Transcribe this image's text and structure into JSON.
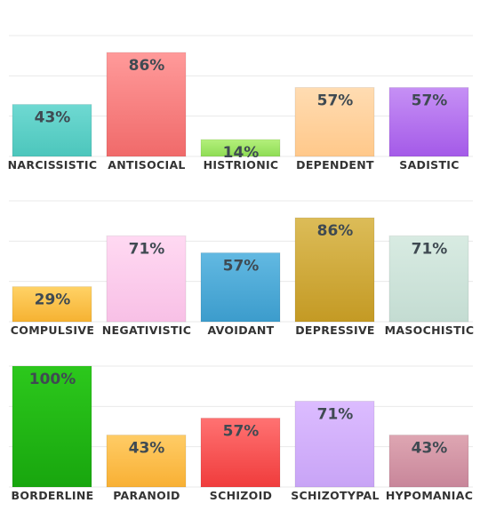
{
  "chart_data": [
    {
      "type": "bar",
      "ylim": [
        0,
        100
      ],
      "grid": true,
      "categories": [
        "NARCISSISTIC",
        "ANTISOCIAL",
        "HISTRIONIC",
        "DEPENDENT",
        "SADISTIC"
      ],
      "values": [
        43,
        86,
        14,
        57,
        57
      ],
      "value_labels": [
        "43%",
        "86%",
        "14%",
        "57%",
        "57%"
      ],
      "colors": [
        [
          "#6fd9d2",
          "#4cc6bc"
        ],
        [
          "#ff9a9a",
          "#f06a6a"
        ],
        [
          "#b4f07c",
          "#8edc54"
        ],
        [
          "#ffdcb2",
          "#ffc88a"
        ],
        [
          "#c690f5",
          "#a45ae8"
        ]
      ]
    },
    {
      "type": "bar",
      "ylim": [
        0,
        100
      ],
      "grid": true,
      "categories": [
        "COMPULSIVE",
        "NEGATIVISTIC",
        "AVOIDANT",
        "DEPRESSIVE",
        "MASOCHISTIC"
      ],
      "values": [
        29,
        71,
        57,
        86,
        71
      ],
      "value_labels": [
        "29%",
        "71%",
        "57%",
        "86%",
        "71%"
      ],
      "colors": [
        [
          "#ffd266",
          "#f6b232"
        ],
        [
          "#ffd9f2",
          "#f8c0e6"
        ],
        [
          "#62b9e2",
          "#3c9ccc"
        ],
        [
          "#dcbc58",
          "#c49a24"
        ],
        [
          "#d8ebe2",
          "#c4dcd2"
        ]
      ]
    },
    {
      "type": "bar",
      "ylim": [
        0,
        100
      ],
      "grid": true,
      "categories": [
        "BORDERLINE",
        "PARANOID",
        "SCHIZOID",
        "SCHIZOTYPAL",
        "HYPOMANIAC"
      ],
      "values": [
        100,
        43,
        57,
        71,
        43
      ],
      "value_labels": [
        "100%",
        "43%",
        "57%",
        "71%",
        "43%"
      ],
      "colors": [
        [
          "#2cc81c",
          "#18a60e"
        ],
        [
          "#ffcc66",
          "#f8b034"
        ],
        [
          "#ff7272",
          "#f03c3c"
        ],
        [
          "#dcbcff",
          "#c8a4f6"
        ],
        [
          "#dea6b2",
          "#c8869a"
        ]
      ]
    }
  ]
}
